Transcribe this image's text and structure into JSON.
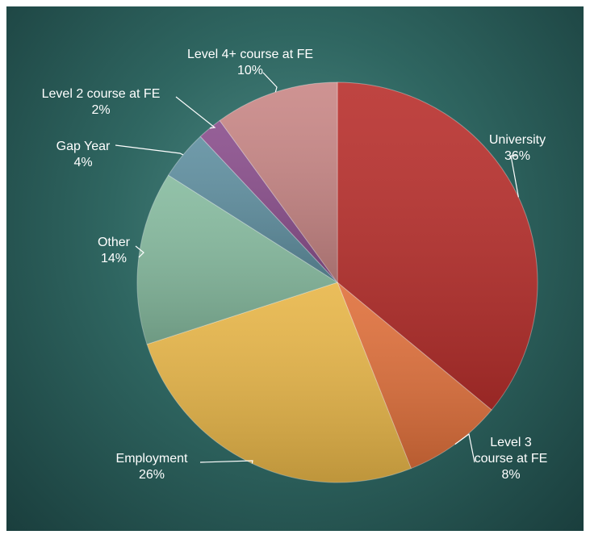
{
  "chart_data": {
    "type": "pie",
    "title": "",
    "slices": [
      {
        "label": "University",
        "label_lines": [
          "University"
        ],
        "value": 36,
        "value_text": "36%",
        "color": "#b82f2c"
      },
      {
        "label": "Level 3 course at FE",
        "label_lines": [
          "Level 3",
          "course at FE"
        ],
        "value": 8,
        "value_text": "8%",
        "color": "#e0703b"
      },
      {
        "label": "Employment",
        "label_lines": [
          "Employment"
        ],
        "value": 26,
        "value_text": "26%",
        "color": "#e8b648"
      },
      {
        "label": "Other",
        "label_lines": [
          "Other"
        ],
        "value": 14,
        "value_text": "14%",
        "color": "#86bb9f"
      },
      {
        "label": "Gap Year",
        "label_lines": [
          "Gap Year"
        ],
        "value": 4,
        "value_text": "4%",
        "color": "#5f8fa0"
      },
      {
        "label": "Level 2 course at FE",
        "label_lines": [
          "Level 2 course at FE"
        ],
        "value": 2,
        "value_text": "2%",
        "color": "#8a4e8c"
      },
      {
        "label": "Level 4+ course at FE",
        "label_lines": [
          "Level 4+ course at FE"
        ],
        "value": 10,
        "value_text": "10%",
        "color": "#c98786"
      }
    ],
    "start_angle": "12 o'clock",
    "direction": "clockwise",
    "legend": "none",
    "data_labels": "outside with leader lines"
  }
}
